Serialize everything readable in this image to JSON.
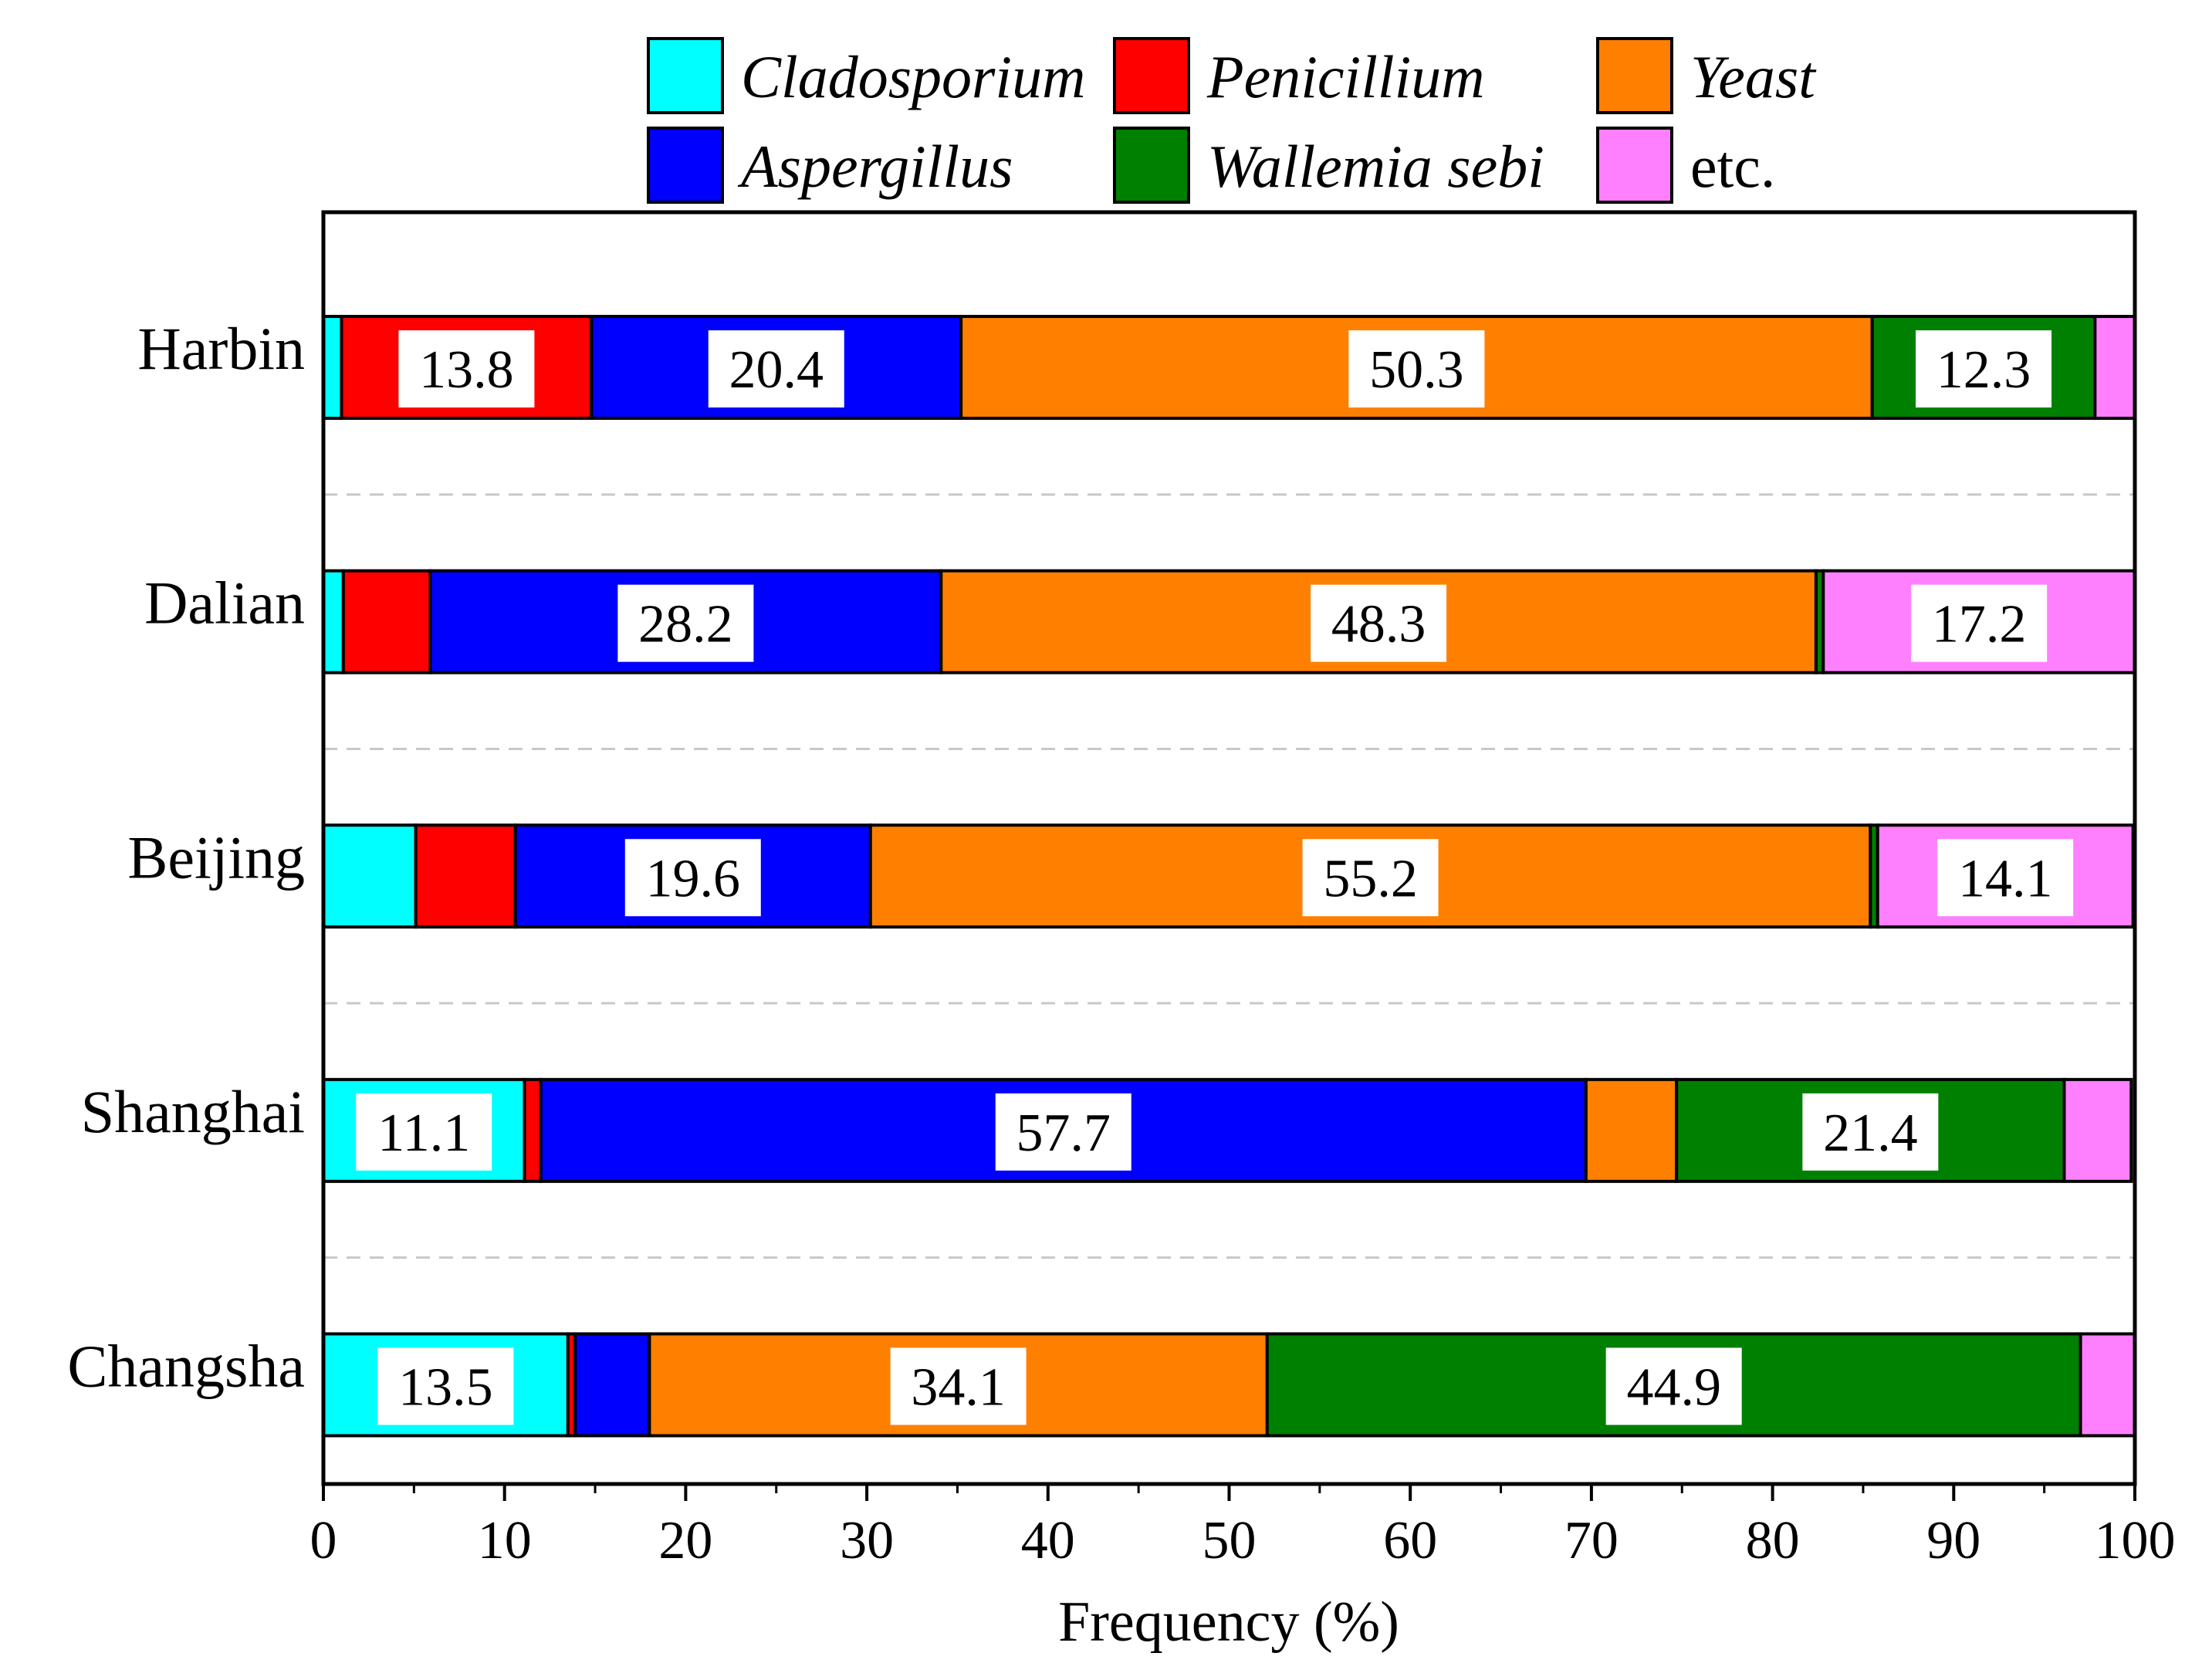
{
  "chart_data": {
    "type": "bar",
    "orientation": "horizontal",
    "stacked": true,
    "xlabel": "Frequency (%)",
    "ylabel": "",
    "xlim": [
      0,
      100
    ],
    "xticks": [
      0,
      10,
      20,
      30,
      40,
      50,
      60,
      70,
      80,
      90,
      100
    ],
    "categories": [
      "Harbin",
      "Dalian",
      "Beijing",
      "Shanghai",
      "Changsha"
    ],
    "legend_position": "top",
    "series": [
      {
        "name": "Cladosporium",
        "italic": true,
        "color": "#00ffff",
        "values": [
          1.0,
          1.1,
          5.1,
          11.1,
          13.5
        ],
        "labels": [
          "",
          "",
          "",
          "11.1",
          "13.5"
        ]
      },
      {
        "name": "Aspergillus",
        "italic": true,
        "color": "#0000ff",
        "values": [
          20.4,
          28.2,
          19.6,
          57.7,
          4.1
        ],
        "labels": [
          "20.4",
          "28.2",
          "19.6",
          "57.7",
          ""
        ]
      },
      {
        "name": "Penicillium",
        "italic": true,
        "color": "#ff0000",
        "values": [
          13.8,
          4.8,
          5.5,
          0.9,
          0.4
        ],
        "labels": [
          "13.8",
          "",
          "",
          "",
          ""
        ]
      },
      {
        "name": "Wallemia sebi",
        "italic": true,
        "color": "#008000",
        "values": [
          12.3,
          0.4,
          0.4,
          21.4,
          44.9
        ],
        "labels": [
          "12.3",
          "",
          "",
          "21.4",
          "44.9"
        ]
      },
      {
        "name": "Yeast",
        "italic": true,
        "color": "#ff8000",
        "values": [
          50.3,
          48.3,
          55.2,
          5.0,
          34.1
        ],
        "labels": [
          "50.3",
          "48.3",
          "55.2",
          "",
          "34.1"
        ]
      },
      {
        "name": "etc.",
        "italic": false,
        "color": "#ff80ff",
        "values": [
          2.2,
          17.2,
          14.1,
          3.7,
          3.0
        ],
        "labels": [
          "",
          "17.2",
          "14.1",
          "",
          ""
        ]
      }
    ],
    "stack_order": {
      "Harbin": [
        "Cladosporium",
        "Penicillium",
        "Aspergillus",
        "Yeast",
        "Wallemia sebi",
        "etc."
      ],
      "Dalian": [
        "Cladosporium",
        "Penicillium",
        "Aspergillus",
        "Yeast",
        "Wallemia sebi",
        "etc."
      ],
      "Beijing": [
        "Cladosporium",
        "Penicillium",
        "Aspergillus",
        "Yeast",
        "Wallemia sebi",
        "etc."
      ],
      "Shanghai": [
        "Cladosporium",
        "Penicillium",
        "Aspergillus",
        "Yeast",
        "Wallemia sebi",
        "etc."
      ],
      "Changsha": [
        "Cladosporium",
        "Penicillium",
        "Aspergillus",
        "Yeast",
        "Wallemia sebi",
        "etc."
      ]
    },
    "legend_order": [
      "Cladosporium",
      "Penicillium",
      "Yeast",
      "Aspergillus",
      "Wallemia sebi",
      "etc."
    ]
  }
}
